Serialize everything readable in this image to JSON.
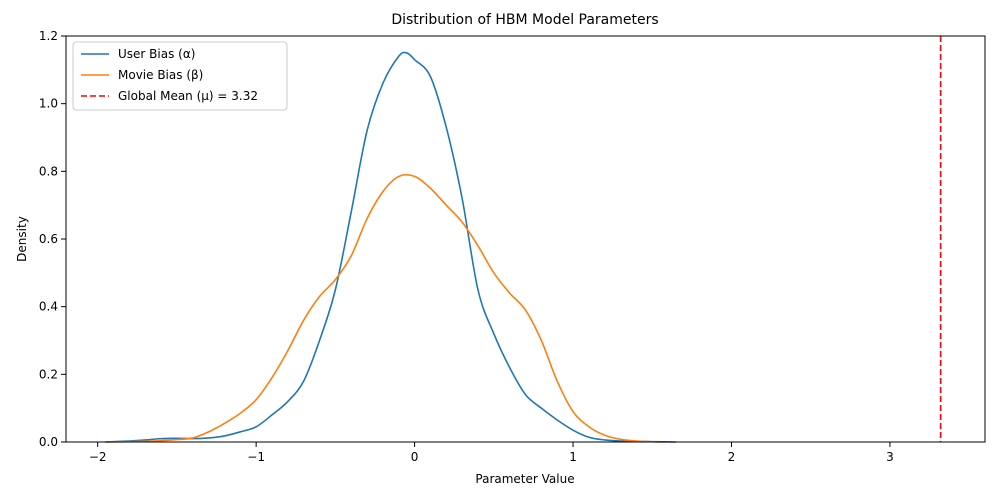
{
  "chart_data": {
    "type": "line",
    "title": "Distribution of HBM Model Parameters",
    "xlabel": "Parameter Value",
    "ylabel": "Density",
    "xlim": [
      -2.2,
      3.6
    ],
    "ylim": [
      0,
      1.2
    ],
    "xticks": [
      -2,
      -1,
      0,
      1,
      2,
      3
    ],
    "xtick_labels": [
      "−2",
      "−1",
      "0",
      "1",
      "2",
      "3"
    ],
    "yticks": [
      0.0,
      0.2,
      0.4,
      0.6,
      0.8,
      1.0,
      1.2
    ],
    "ytick_labels": [
      "0.0",
      "0.2",
      "0.4",
      "0.6",
      "0.8",
      "1.0",
      "1.2"
    ],
    "grid": false,
    "legend_position": "top-left",
    "series": [
      {
        "name": "User Bias (α)",
        "color": "#1f77b4",
        "x": [
          -1.95,
          -1.8,
          -1.7,
          -1.6,
          -1.5,
          -1.4,
          -1.3,
          -1.2,
          -1.1,
          -1.0,
          -0.9,
          -0.8,
          -0.7,
          -0.6,
          -0.5,
          -0.4,
          -0.3,
          -0.2,
          -0.1,
          -0.05,
          0.0,
          0.1,
          0.2,
          0.3,
          0.4,
          0.5,
          0.6,
          0.7,
          0.8,
          0.9,
          1.0,
          1.1,
          1.2,
          1.3,
          1.4,
          1.5,
          1.65
        ],
        "y": [
          0.0,
          0.003,
          0.006,
          0.01,
          0.011,
          0.01,
          0.012,
          0.018,
          0.03,
          0.045,
          0.08,
          0.12,
          0.18,
          0.3,
          0.45,
          0.68,
          0.92,
          1.06,
          1.14,
          1.15,
          1.13,
          1.08,
          0.93,
          0.72,
          0.45,
          0.32,
          0.22,
          0.14,
          0.1,
          0.065,
          0.035,
          0.014,
          0.006,
          0.003,
          0.002,
          0.001,
          0.0
        ]
      },
      {
        "name": "Movie Bias (β)",
        "color": "#ff7f0e",
        "x": [
          -1.95,
          -1.8,
          -1.7,
          -1.6,
          -1.5,
          -1.4,
          -1.3,
          -1.2,
          -1.1,
          -1.0,
          -0.9,
          -0.8,
          -0.7,
          -0.6,
          -0.5,
          -0.4,
          -0.3,
          -0.2,
          -0.1,
          0.0,
          0.1,
          0.2,
          0.3,
          0.4,
          0.5,
          0.6,
          0.7,
          0.8,
          0.9,
          1.0,
          1.1,
          1.2,
          1.3,
          1.4,
          1.55
        ],
        "y": [
          0.0,
          0.001,
          0.002,
          0.004,
          0.007,
          0.012,
          0.03,
          0.055,
          0.085,
          0.125,
          0.19,
          0.27,
          0.36,
          0.43,
          0.48,
          0.55,
          0.66,
          0.74,
          0.785,
          0.785,
          0.75,
          0.7,
          0.65,
          0.58,
          0.5,
          0.44,
          0.39,
          0.3,
          0.18,
          0.09,
          0.045,
          0.02,
          0.008,
          0.003,
          0.0
        ]
      }
    ],
    "reference_line": {
      "name": "Global Mean (μ) = 3.32",
      "x": 3.32,
      "color": "#ff0000",
      "style": "dashed"
    }
  }
}
